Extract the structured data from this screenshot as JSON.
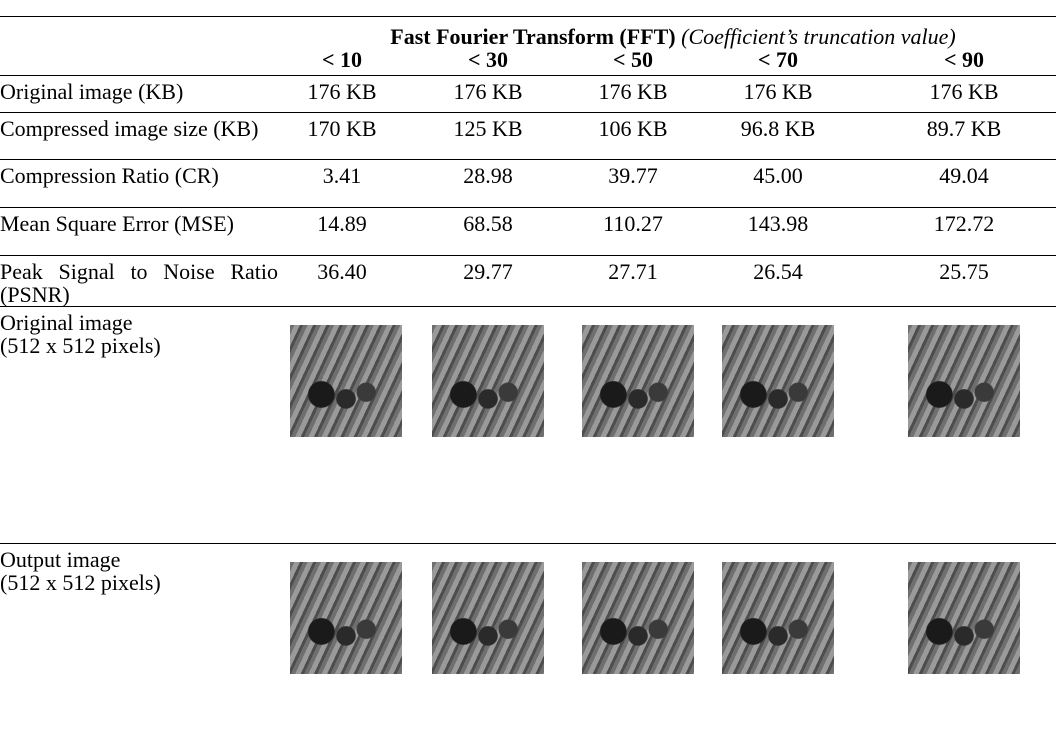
{
  "table": {
    "title": "Fast Fourier Transform (FFT)",
    "subtitle": "(Coefficient’s truncation value)",
    "columns": [
      "< 10",
      "< 30",
      "< 50",
      "< 70",
      "< 90"
    ],
    "rows": [
      {
        "label": "Original image (KB)",
        "cells": [
          "176 KB",
          "176 KB",
          "176 KB",
          "176 KB",
          "176 KB"
        ]
      },
      {
        "label": "Compressed image size (KB)",
        "cells": [
          "170 KB",
          "125 KB",
          "106 KB",
          "96.8 KB",
          "89.7 KB"
        ]
      },
      {
        "label": "Compression Ratio (CR)",
        "cells": [
          "3.41",
          "28.98",
          "39.77",
          "45.00",
          "49.04"
        ]
      },
      {
        "label": "Mean Square Error (MSE)",
        "cells": [
          "14.89",
          "68.58",
          "110.27",
          "143.98",
          "172.72"
        ]
      },
      {
        "label": "Peak Signal to Noise Ratio (PSNR)",
        "cells": [
          "36.40",
          "29.77",
          "27.71",
          "26.54",
          "25.75"
        ]
      }
    ],
    "image_rows": [
      {
        "label_lines": [
          "Original image",
          "(512 x 512 pixels)"
        ]
      },
      {
        "label_lines": [
          "Output image",
          "(512 x 512 pixels)"
        ]
      }
    ]
  }
}
